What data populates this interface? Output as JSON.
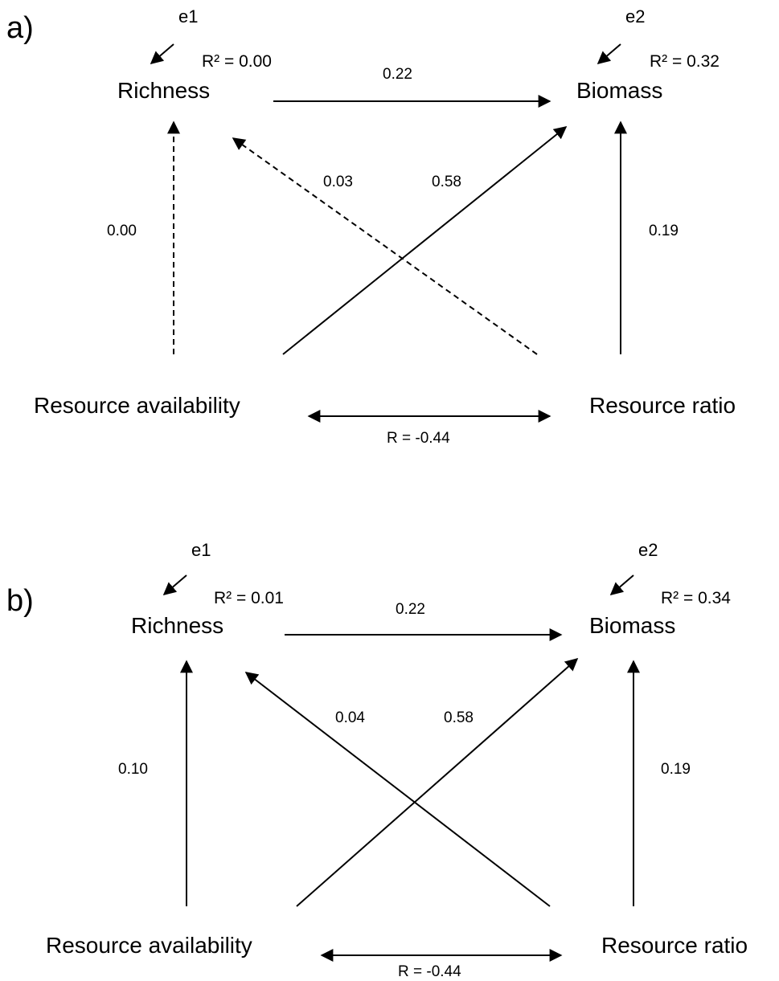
{
  "panels": [
    {
      "label": "a)",
      "nodes": {
        "richness": "Richness",
        "biomass": "Biomass",
        "resource_availability": "Resource availability",
        "resource_ratio": "Resource ratio"
      },
      "errors": {
        "e1": "e1",
        "e2": "e2"
      },
      "r2": {
        "richness": "R² = 0.00",
        "biomass": "R² = 0.32"
      },
      "paths": {
        "richness_to_biomass": "0.22",
        "availability_to_richness": "0.00",
        "ratio_to_richness": "0.03",
        "availability_to_biomass": "0.58",
        "ratio_to_biomass": "0.19",
        "correlation": "R = -0.44"
      },
      "dashed_paths": [
        "availability_to_richness",
        "ratio_to_richness"
      ]
    },
    {
      "label": "b)",
      "nodes": {
        "richness": "Richness",
        "biomass": "Biomass",
        "resource_availability": "Resource availability",
        "resource_ratio": "Resource ratio"
      },
      "errors": {
        "e1": "e1",
        "e2": "e2"
      },
      "r2": {
        "richness": "R² = 0.01",
        "biomass": "R² = 0.34"
      },
      "paths": {
        "richness_to_biomass": "0.22",
        "availability_to_richness": "0.10",
        "ratio_to_richness": "0.04",
        "availability_to_biomass": "0.58",
        "ratio_to_biomass": "0.19",
        "correlation": "R = -0.44"
      },
      "dashed_paths": []
    }
  ]
}
